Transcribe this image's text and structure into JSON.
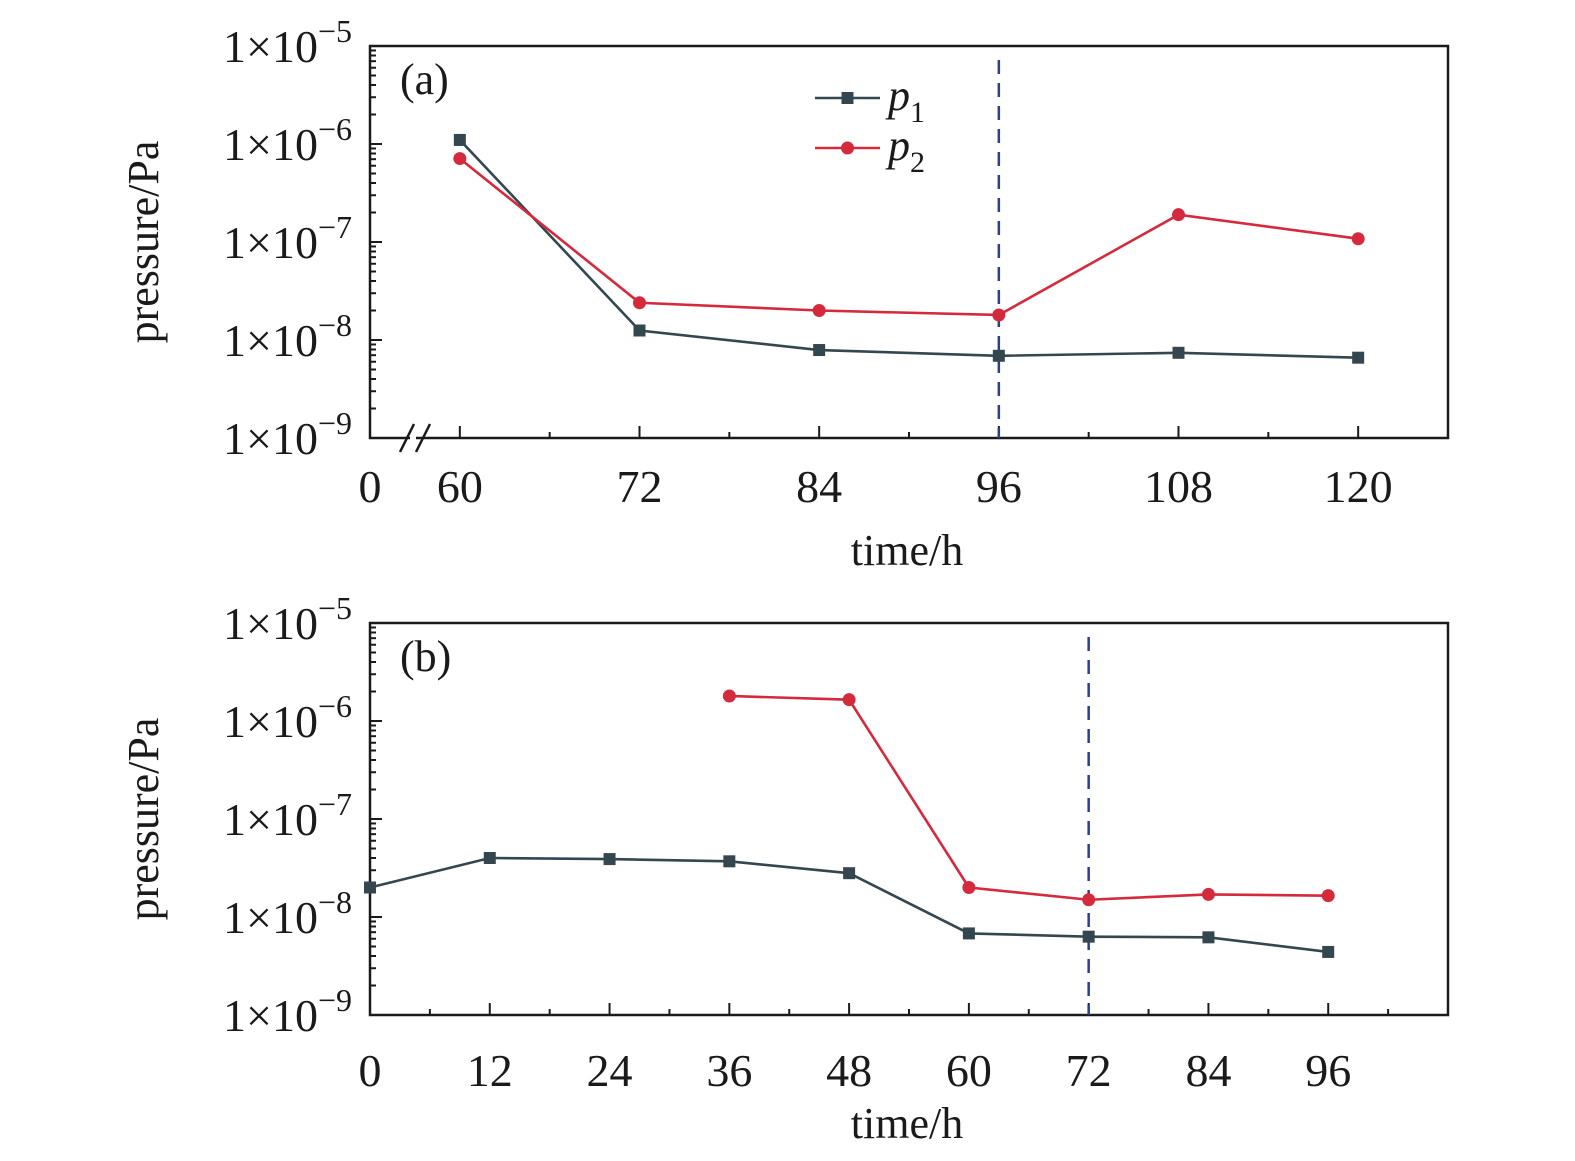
{
  "chart_data": [
    {
      "type": "line",
      "panel_label": "(a)",
      "xlabel": "time/h",
      "ylabel": "pressure/Pa",
      "x_ticks": [
        60,
        72,
        84,
        96,
        108,
        120
      ],
      "x_origin_label": "0",
      "x_axis_break": true,
      "xlim": [
        54,
        126
      ],
      "y_scale": "log",
      "ylim": [
        1e-09,
        1e-05
      ],
      "y_ticks": [
        {
          "base": "1×10",
          "exp": "−9"
        },
        {
          "base": "1×10",
          "exp": "−8"
        },
        {
          "base": "1×10",
          "exp": "−7"
        },
        {
          "base": "1×10",
          "exp": "−6"
        },
        {
          "base": "1×10",
          "exp": "−5"
        }
      ],
      "vertical_line_x": 96,
      "legend": [
        {
          "label": "p",
          "subscript": "1",
          "color": "#34474f",
          "marker": "square"
        },
        {
          "label": "p",
          "subscript": "2",
          "color": "#d42a3c",
          "marker": "circle"
        }
      ],
      "legend_position": "top-center",
      "series": [
        {
          "name": "p1",
          "color": "#34474f",
          "marker": "square",
          "x": [
            60,
            72,
            84,
            96,
            108,
            120
          ],
          "y": [
            1.1e-06,
            1.25e-08,
            7.9e-09,
            6.9e-09,
            7.4e-09,
            6.6e-09
          ]
        },
        {
          "name": "p2",
          "color": "#d42a3c",
          "marker": "circle",
          "x": [
            60,
            72,
            84,
            96,
            108,
            120
          ],
          "y": [
            7.1e-07,
            2.4e-08,
            2e-08,
            1.8e-08,
            1.9e-07,
            1.08e-07
          ]
        }
      ]
    },
    {
      "type": "line",
      "panel_label": "(b)",
      "xlabel": "time/h",
      "ylabel": "pressure/Pa",
      "x_ticks": [
        0,
        12,
        24,
        36,
        48,
        60,
        72,
        84,
        96
      ],
      "xlim": [
        0,
        108
      ],
      "y_scale": "log",
      "ylim": [
        1e-09,
        1e-05
      ],
      "y_ticks": [
        {
          "base": "1×10",
          "exp": "−9"
        },
        {
          "base": "1×10",
          "exp": "−8"
        },
        {
          "base": "1×10",
          "exp": "−7"
        },
        {
          "base": "1×10",
          "exp": "−6"
        },
        {
          "base": "1×10",
          "exp": "−5"
        }
      ],
      "vertical_line_x": 72,
      "series": [
        {
          "name": "p1",
          "color": "#34474f",
          "marker": "square",
          "x": [
            0,
            12,
            24,
            36,
            48,
            60,
            72,
            84,
            96
          ],
          "y": [
            2e-08,
            4e-08,
            3.9e-08,
            3.7e-08,
            2.8e-08,
            6.8e-09,
            6.3e-09,
            6.2e-09,
            4.4e-09
          ]
        },
        {
          "name": "p2",
          "color": "#d42a3c",
          "marker": "circle",
          "x": [
            36,
            48,
            60,
            72,
            84,
            96
          ],
          "y": [
            1.8e-06,
            1.65e-06,
            2e-08,
            1.5e-08,
            1.7e-08,
            1.65e-08
          ]
        }
      ]
    }
  ]
}
